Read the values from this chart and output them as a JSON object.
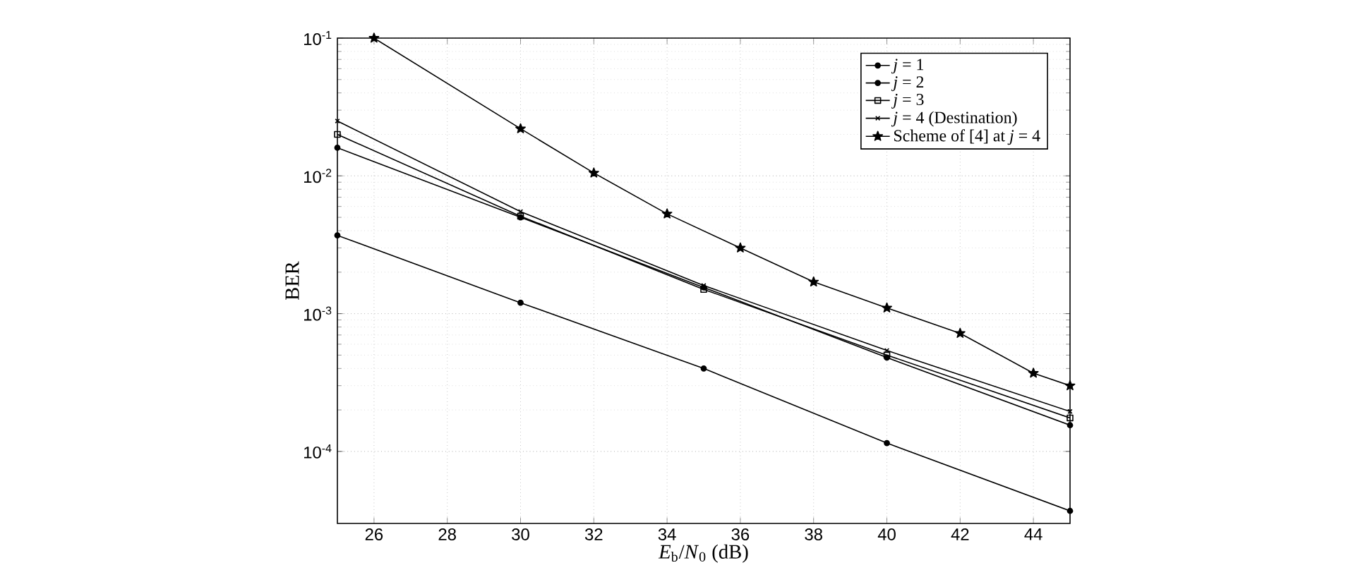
{
  "chart_data": {
    "type": "line",
    "xlabel": "*E*$_{b}$/*N*$_{0}$ (dB)",
    "ylabel": "BER",
    "log": "y",
    "grid": true,
    "legend": "top right",
    "line_style": "solid",
    "xlim": [
      25,
      45
    ],
    "xticks": [
      26,
      28,
      30,
      32,
      34,
      36,
      38,
      40,
      42,
      44
    ],
    "ylim": [
      3e-05,
      0.1
    ],
    "yticks": [
      {
        "value": 0.0001,
        "label": "10$^{-4}$"
      },
      {
        "value": 0.001,
        "label": "10$^{-3}$"
      },
      {
        "value": 0.01,
        "label": "10$^{-2}$"
      },
      {
        "value": 0.1,
        "label": "10$^{-1}$"
      }
    ],
    "series": [
      {
        "name": "*j* = 1",
        "color": "#000000",
        "marker": "circle",
        "x": [
          25,
          30,
          35,
          40,
          45
        ],
        "values": [
          0.0037,
          0.0012,
          0.0004,
          0.000115,
          3.7e-05
        ]
      },
      {
        "name": "*j* = 2",
        "color": "#000000",
        "marker": "circle",
        "x": [
          25,
          30,
          35,
          40,
          45
        ],
        "values": [
          0.016,
          0.005,
          0.00155,
          0.00048,
          0.000155
        ]
      },
      {
        "name": "*j* = 3",
        "color": "#000000",
        "marker": "square",
        "x": [
          25,
          30,
          35,
          40,
          45
        ],
        "values": [
          0.02,
          0.0051,
          0.0015,
          0.0005,
          0.000175
        ]
      },
      {
        "name": "*j* = 4 (Destination)",
        "color": "#000000",
        "marker": "cross",
        "x": [
          25,
          30,
          35,
          40,
          45
        ],
        "values": [
          0.025,
          0.0055,
          0.0016,
          0.00054,
          0.000195
        ]
      },
      {
        "name": "Scheme of [4] at *j* = 4",
        "color": "#000000",
        "marker": "star",
        "x": [
          26,
          30,
          32,
          34,
          36,
          38,
          40,
          42,
          44,
          45
        ],
        "values": [
          0.1,
          0.022,
          0.0105,
          0.0053,
          0.003,
          0.0017,
          0.0011,
          0.00072,
          0.00037,
          0.0003
        ]
      }
    ]
  }
}
